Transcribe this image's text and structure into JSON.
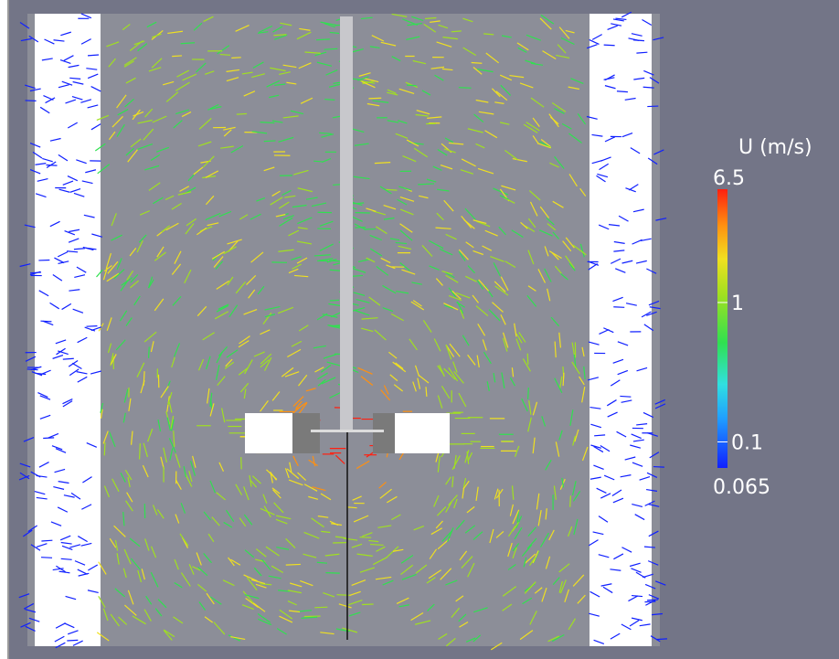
{
  "colorbar": {
    "title": "U (m/s)",
    "max": 6.5,
    "min": 0.065,
    "ticks": [
      1,
      0.1
    ],
    "scale": "log"
  }
}
